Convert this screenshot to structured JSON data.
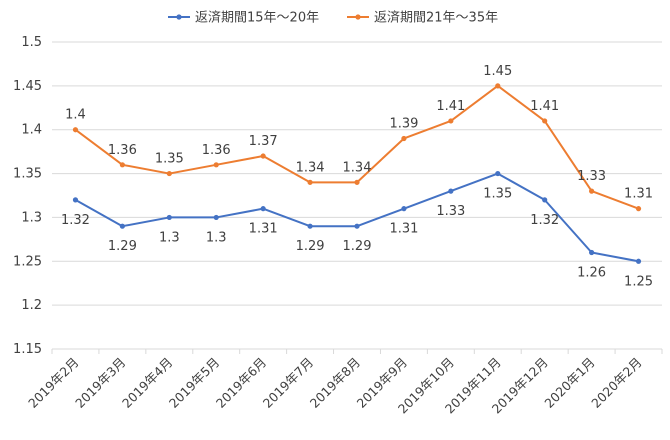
{
  "chart_data": {
    "type": "line",
    "categories": [
      "2019年2月",
      "2019年3月",
      "2019年4月",
      "2019年5月",
      "2019年6月",
      "2019年7月",
      "2019年8月",
      "2019年9月",
      "2019年10月",
      "2019年11月",
      "2019年12月",
      "2020年1月",
      "2020年2月"
    ],
    "series": [
      {
        "name": "返済期間15年～20年",
        "color": "#4472C4",
        "values": [
          1.32,
          1.29,
          1.3,
          1.3,
          1.31,
          1.29,
          1.29,
          1.31,
          1.33,
          1.35,
          1.32,
          1.26,
          1.25
        ],
        "labels": [
          "1.32",
          "1.29",
          "1.3",
          "1.3",
          "1.31",
          "1.29",
          "1.29",
          "1.31",
          "1.33",
          "1.35",
          "1.32",
          "1.26",
          "1.25"
        ]
      },
      {
        "name": "返済期間21年～35年",
        "color": "#ED7D31",
        "values": [
          1.4,
          1.36,
          1.35,
          1.36,
          1.37,
          1.34,
          1.34,
          1.39,
          1.41,
          1.45,
          1.41,
          1.33,
          1.31
        ],
        "labels": [
          "1.4",
          "1.36",
          "1.35",
          "1.36",
          "1.37",
          "1.34",
          "1.34",
          "1.39",
          "1.41",
          "1.45",
          "1.41",
          "1.33",
          "1.31"
        ]
      }
    ],
    "ylim": [
      1.15,
      1.5
    ],
    "yticks": [
      "1.15",
      "1.2",
      "1.25",
      "1.3",
      "1.35",
      "1.4",
      "1.45",
      "1.5"
    ],
    "grid": true,
    "legend_position": "top-center"
  }
}
